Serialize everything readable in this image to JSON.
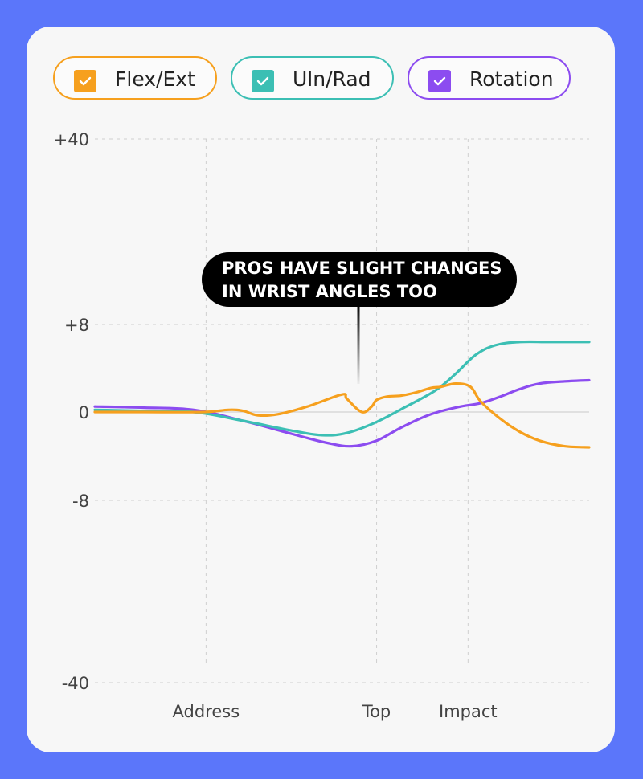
{
  "legend": [
    {
      "label": "Flex/Ext",
      "color": "#f6a01e",
      "checked": true,
      "icon": "checkmark-icon"
    },
    {
      "label": "Uln/Rad",
      "color": "#3cbfb4",
      "checked": true,
      "icon": "checkmark-icon"
    },
    {
      "label": "Rotation",
      "color": "#8c4cf0",
      "checked": true,
      "icon": "checkmark-icon"
    }
  ],
  "annotation": {
    "line1": "PROS HAVE SLIGHT CHANGES",
    "line2": "IN WRIST ANGLES TOO"
  },
  "chart_data": {
    "type": "line",
    "y_tick_labels": [
      "+40",
      "+8",
      "0",
      "-8",
      "-40"
    ],
    "y_scale": "piecewise (outer ranges ±8 to ±40 compressed)",
    "x_tick_labels": [
      "Address",
      "Top",
      "Impact"
    ],
    "xlim": [
      0,
      100
    ],
    "x_ticks": [
      22.5,
      57,
      75.5
    ],
    "grid": true,
    "series": [
      {
        "name": "Flex/Ext",
        "color": "#f6a01e",
        "points": [
          [
            0,
            0
          ],
          [
            10,
            0
          ],
          [
            22,
            0
          ],
          [
            27,
            0.2
          ],
          [
            30,
            0.1
          ],
          [
            33,
            -0.3
          ],
          [
            37,
            -0.2
          ],
          [
            43,
            0.5
          ],
          [
            50,
            1.6
          ],
          [
            51,
            1.2
          ],
          [
            54,
            0
          ],
          [
            56,
            0.5
          ],
          [
            57,
            1.1
          ],
          [
            59,
            1.4
          ],
          [
            62,
            1.5
          ],
          [
            65,
            1.8
          ],
          [
            68,
            2.2
          ],
          [
            70,
            2.3
          ],
          [
            73,
            2.6
          ],
          [
            76,
            2.3
          ],
          [
            78,
            1.0
          ],
          [
            82,
            -0.6
          ],
          [
            86,
            -1.8
          ],
          [
            90,
            -2.6
          ],
          [
            95,
            -3.1
          ],
          [
            100,
            -3.2
          ]
        ]
      },
      {
        "name": "Uln/Rad",
        "color": "#3cbfb4",
        "points": [
          [
            0,
            0.2
          ],
          [
            10,
            0.1
          ],
          [
            20,
            0
          ],
          [
            30,
            -0.8
          ],
          [
            40,
            -1.7
          ],
          [
            46,
            -2.1
          ],
          [
            51,
            -1.9
          ],
          [
            57,
            -0.9
          ],
          [
            63,
            0.5
          ],
          [
            69,
            2.0
          ],
          [
            73,
            3.5
          ],
          [
            77,
            5.2
          ],
          [
            81,
            6.1
          ],
          [
            86,
            6.4
          ],
          [
            92,
            6.4
          ],
          [
            100,
            6.4
          ]
        ]
      },
      {
        "name": "Rotation",
        "color": "#8c4cf0",
        "points": [
          [
            0,
            0.5
          ],
          [
            10,
            0.4
          ],
          [
            20,
            0.2
          ],
          [
            30,
            -0.8
          ],
          [
            40,
            -2.0
          ],
          [
            47,
            -2.8
          ],
          [
            52,
            -3.1
          ],
          [
            57,
            -2.6
          ],
          [
            62,
            -1.4
          ],
          [
            68,
            -0.2
          ],
          [
            74,
            0.5
          ],
          [
            78,
            0.8
          ],
          [
            82,
            1.4
          ],
          [
            86,
            2.1
          ],
          [
            90,
            2.6
          ],
          [
            95,
            2.8
          ],
          [
            100,
            2.9
          ]
        ]
      }
    ]
  }
}
